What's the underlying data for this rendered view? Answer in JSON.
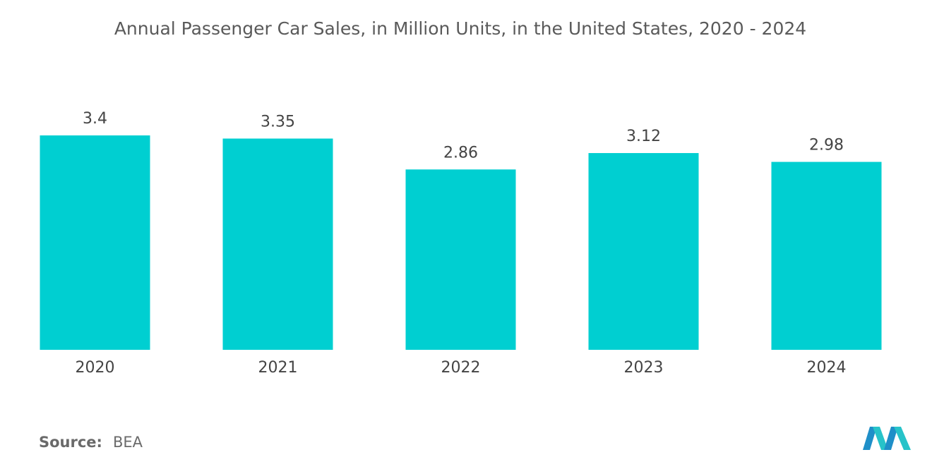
{
  "chart_data": {
    "type": "bar",
    "title": "Annual Passenger Car Sales, in Million Units, in the United States, 2020 - 2024",
    "categories": [
      "2020",
      "2021",
      "2022",
      "2023",
      "2024"
    ],
    "values": [
      3.4,
      3.35,
      2.86,
      3.12,
      2.98
    ],
    "color": "#00cfd1",
    "source_label": "Source:",
    "source": "BEA"
  }
}
